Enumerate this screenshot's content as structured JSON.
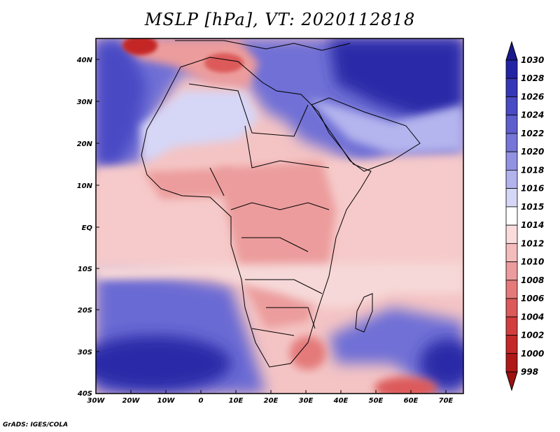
{
  "map": {
    "title": "MSLP [hPa], VT: 2020112818",
    "variable": "MSLP",
    "units": "hPa",
    "valid_time": "2020112818",
    "region": "Africa",
    "lat_ticks": [
      "40N",
      "30N",
      "20N",
      "10N",
      "EQ",
      "10S",
      "20S",
      "30S",
      "40S"
    ],
    "lon_ticks": [
      "30W",
      "20W",
      "10W",
      "0",
      "10E",
      "20E",
      "30E",
      "40E",
      "50E",
      "60E",
      "70E"
    ],
    "colorbar": {
      "levels": [
        "1030",
        "1028",
        "1026",
        "1024",
        "1022",
        "1020",
        "1018",
        "1016",
        "1015",
        "1014",
        "1012",
        "1010",
        "1008",
        "1006",
        "1004",
        "1002",
        "1000",
        "998"
      ],
      "colors": [
        "#1a1a8c",
        "#2323a6",
        "#3636b8",
        "#4a4ac4",
        "#5e5ece",
        "#7676d8",
        "#9292e2",
        "#b2b2ec",
        "#d6d6f6",
        "#ffffff",
        "#fadcdc",
        "#f4bcbc",
        "#ec9c9c",
        "#e47a7a",
        "#dc5a5a",
        "#d23e3e",
        "#c42828",
        "#b01818",
        "#9c1010"
      ]
    },
    "credit": "GrADS: IGES/COLA"
  }
}
